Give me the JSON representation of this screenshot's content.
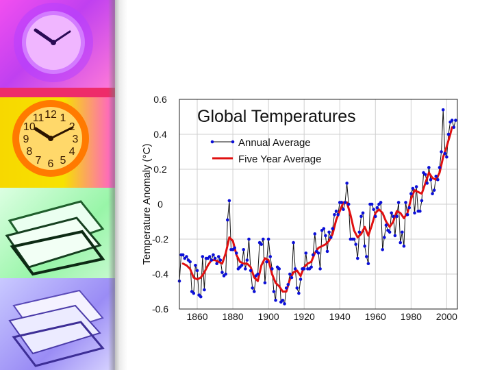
{
  "clock_numerals": [
    "12",
    "1",
    "2",
    "3",
    "4",
    "5",
    "6",
    "7",
    "8",
    "9",
    "10",
    "11"
  ],
  "colors": {
    "annual": "#0b0fd8",
    "annual_line": "#111111",
    "five_year": "#e01010",
    "plot_bg": "#ffffff",
    "grid": "#cfcfcf"
  },
  "chart_data": {
    "type": "line",
    "title": "Global Temperatures",
    "xlabel": "",
    "ylabel": "Temperature Anomaly (°C)",
    "xlim": [
      1850,
      2006
    ],
    "ylim": [
      -0.6,
      0.6
    ],
    "x_ticks": [
      1860,
      1880,
      1900,
      1920,
      1940,
      1960,
      1980,
      2000
    ],
    "y_ticks": [
      0.6,
      0.4,
      0.2,
      0,
      -0.2,
      -0.4,
      -0.6
    ],
    "y_tick_labels": [
      "0.6",
      "0.4",
      "0.2",
      "0",
      "-0.2",
      "-0.4",
      "-0.6"
    ],
    "grid": true,
    "legend_position": "top-left",
    "series": [
      {
        "name": "Annual Average",
        "style": "line-with-points",
        "x": [
          1850,
          1851,
          1852,
          1853,
          1854,
          1855,
          1856,
          1857,
          1858,
          1859,
          1860,
          1861,
          1862,
          1863,
          1864,
          1865,
          1866,
          1867,
          1868,
          1869,
          1870,
          1871,
          1872,
          1873,
          1874,
          1875,
          1876,
          1877,
          1878,
          1879,
          1880,
          1881,
          1882,
          1883,
          1884,
          1885,
          1886,
          1887,
          1888,
          1889,
          1890,
          1891,
          1892,
          1893,
          1894,
          1895,
          1896,
          1897,
          1898,
          1899,
          1900,
          1901,
          1902,
          1903,
          1904,
          1905,
          1906,
          1907,
          1908,
          1909,
          1910,
          1911,
          1912,
          1913,
          1914,
          1915,
          1916,
          1917,
          1918,
          1919,
          1920,
          1921,
          1922,
          1923,
          1924,
          1925,
          1926,
          1927,
          1928,
          1929,
          1930,
          1931,
          1932,
          1933,
          1934,
          1935,
          1936,
          1937,
          1938,
          1939,
          1940,
          1941,
          1942,
          1943,
          1944,
          1945,
          1946,
          1947,
          1948,
          1949,
          1950,
          1951,
          1952,
          1953,
          1954,
          1955,
          1956,
          1957,
          1958,
          1959,
          1960,
          1961,
          1962,
          1963,
          1964,
          1965,
          1966,
          1967,
          1968,
          1969,
          1970,
          1971,
          1972,
          1973,
          1974,
          1975,
          1976,
          1977,
          1978,
          1979,
          1980,
          1981,
          1982,
          1983,
          1984,
          1985,
          1986,
          1987,
          1988,
          1989,
          1990,
          1991,
          1992,
          1993,
          1994,
          1995,
          1996,
          1997,
          1998,
          1999,
          2000,
          2001,
          2002,
          2003,
          2004,
          2005
        ],
        "y": [
          -0.44,
          -0.29,
          -0.29,
          -0.31,
          -0.3,
          -0.32,
          -0.33,
          -0.5,
          -0.51,
          -0.35,
          -0.38,
          -0.52,
          -0.53,
          -0.3,
          -0.49,
          -0.31,
          -0.31,
          -0.3,
          -0.32,
          -0.29,
          -0.31,
          -0.34,
          -0.3,
          -0.32,
          -0.39,
          -0.41,
          -0.4,
          -0.09,
          0.02,
          -0.26,
          -0.26,
          -0.25,
          -0.28,
          -0.37,
          -0.36,
          -0.35,
          -0.26,
          -0.37,
          -0.32,
          -0.2,
          -0.38,
          -0.48,
          -0.5,
          -0.41,
          -0.4,
          -0.22,
          -0.23,
          -0.2,
          -0.45,
          -0.33,
          -0.2,
          -0.3,
          -0.37,
          -0.5,
          -0.55,
          -0.36,
          -0.37,
          -0.56,
          -0.55,
          -0.57,
          -0.48,
          -0.46,
          -0.4,
          -0.42,
          -0.22,
          -0.37,
          -0.48,
          -0.51,
          -0.43,
          -0.37,
          -0.37,
          -0.28,
          -0.37,
          -0.37,
          -0.36,
          -0.29,
          -0.17,
          -0.27,
          -0.28,
          -0.37,
          -0.15,
          -0.14,
          -0.18,
          -0.27,
          -0.16,
          -0.19,
          -0.14,
          -0.06,
          -0.04,
          -0.06,
          0.01,
          0.01,
          -0.03,
          0.01,
          0.12,
          0.0,
          -0.2,
          -0.2,
          -0.2,
          -0.23,
          -0.31,
          -0.16,
          -0.07,
          -0.05,
          -0.24,
          -0.3,
          -0.34,
          0.0,
          0.0,
          -0.03,
          -0.07,
          -0.02,
          0.0,
          0.01,
          -0.26,
          -0.19,
          -0.12,
          -0.15,
          -0.16,
          -0.05,
          -0.07,
          -0.18,
          -0.07,
          0.01,
          -0.22,
          -0.16,
          -0.24,
          0.01,
          -0.06,
          -0.02,
          0.06,
          0.09,
          -0.05,
          0.1,
          -0.04,
          -0.04,
          0.02,
          0.18,
          0.17,
          0.12,
          0.21,
          0.14,
          0.06,
          0.08,
          0.16,
          0.14,
          0.21,
          0.3,
          0.54,
          0.29,
          0.27,
          0.4,
          0.47,
          0.48,
          0.44,
          0.48
        ]
      },
      {
        "name": "Five Year Average",
        "style": "line",
        "x": [
          1852,
          1854,
          1856,
          1858,
          1860,
          1862,
          1864,
          1866,
          1868,
          1870,
          1872,
          1874,
          1876,
          1878,
          1880,
          1882,
          1884,
          1886,
          1888,
          1890,
          1892,
          1894,
          1896,
          1898,
          1900,
          1902,
          1904,
          1906,
          1908,
          1910,
          1912,
          1914,
          1916,
          1918,
          1920,
          1922,
          1924,
          1926,
          1928,
          1930,
          1932,
          1934,
          1936,
          1938,
          1940,
          1942,
          1944,
          1946,
          1948,
          1950,
          1952,
          1954,
          1956,
          1958,
          1960,
          1962,
          1964,
          1966,
          1968,
          1970,
          1972,
          1974,
          1976,
          1978,
          1980,
          1982,
          1984,
          1986,
          1988,
          1990,
          1992,
          1994,
          1996,
          1998,
          2000,
          2002,
          2003
        ],
        "y": [
          -0.34,
          -0.35,
          -0.37,
          -0.42,
          -0.43,
          -0.42,
          -0.39,
          -0.35,
          -0.32,
          -0.32,
          -0.33,
          -0.34,
          -0.28,
          -0.19,
          -0.21,
          -0.29,
          -0.33,
          -0.34,
          -0.34,
          -0.36,
          -0.42,
          -0.44,
          -0.35,
          -0.31,
          -0.32,
          -0.4,
          -0.45,
          -0.47,
          -0.5,
          -0.5,
          -0.43,
          -0.39,
          -0.38,
          -0.41,
          -0.36,
          -0.34,
          -0.33,
          -0.28,
          -0.25,
          -0.24,
          -0.23,
          -0.21,
          -0.17,
          -0.09,
          -0.04,
          0.01,
          0.01,
          -0.06,
          -0.15,
          -0.19,
          -0.17,
          -0.13,
          -0.18,
          -0.12,
          -0.05,
          -0.03,
          -0.05,
          -0.1,
          -0.13,
          -0.1,
          -0.04,
          -0.05,
          -0.08,
          -0.05,
          0.03,
          0.08,
          0.07,
          0.06,
          0.12,
          0.18,
          0.15,
          0.14,
          0.18,
          0.27,
          0.33,
          0.4,
          0.44
        ]
      }
    ]
  }
}
